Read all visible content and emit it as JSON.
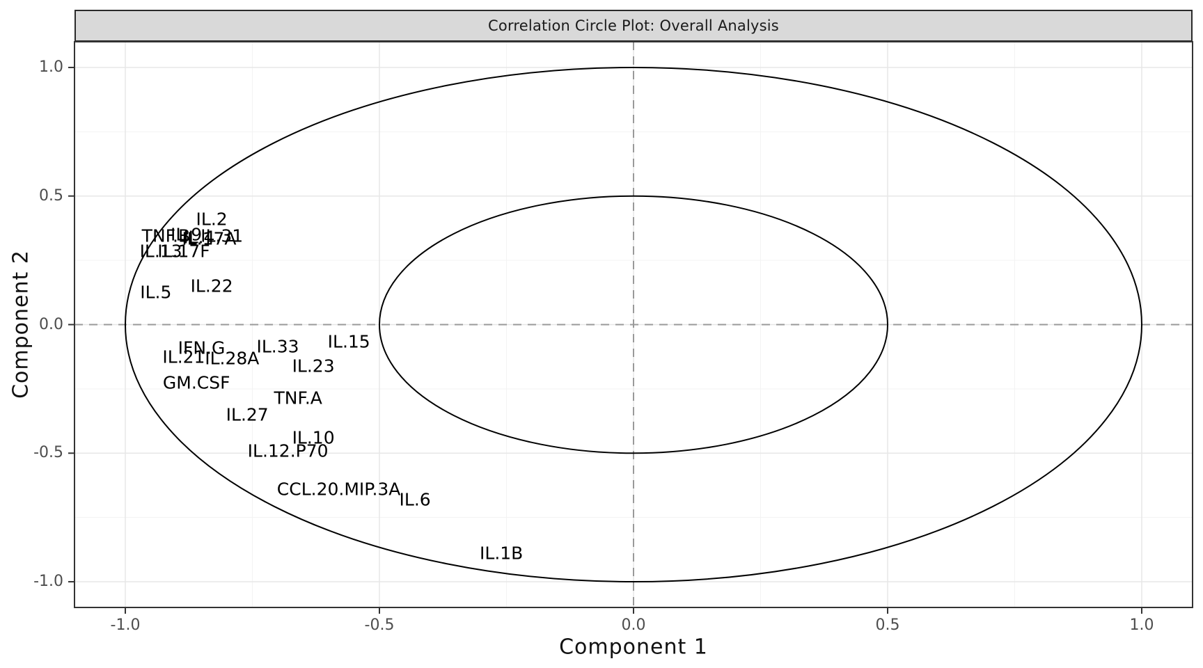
{
  "chart_data": {
    "type": "scatter",
    "title": "Correlation Circle Plot: Overall Analysis",
    "xlabel": "Component 1",
    "ylabel": "Component 2",
    "xlim": [
      -1.1,
      1.1
    ],
    "ylim": [
      -1.1,
      1.1
    ],
    "x_ticks": [
      {
        "value": -1.0,
        "label": "-1.0"
      },
      {
        "value": -0.5,
        "label": "-0.5"
      },
      {
        "value": 0.0,
        "label": "0.0"
      },
      {
        "value": 0.5,
        "label": "0.5"
      },
      {
        "value": 1.0,
        "label": "1.0"
      }
    ],
    "y_ticks": [
      {
        "value": 1.0,
        "label": "1.0"
      },
      {
        "value": 0.5,
        "label": "0.5"
      },
      {
        "value": 0.0,
        "label": "0.0"
      },
      {
        "value": -0.5,
        "label": "-0.5"
      },
      {
        "value": -1.0,
        "label": "-1.0"
      }
    ],
    "minor_grid": [
      -0.75,
      -0.25,
      0.25,
      0.75
    ],
    "grid": true,
    "legend": "none",
    "correlation_circles": [
      0.5,
      1.0
    ],
    "reference_lines": {
      "vertical_x": 0,
      "horizontal_y": 0,
      "style": "dashed"
    },
    "points": [
      {
        "label": "IL.2",
        "x": -0.83,
        "y": 0.41
      },
      {
        "label": "TNF.B",
        "x": -0.92,
        "y": 0.345
      },
      {
        "label": "IL.9",
        "x": -0.88,
        "y": 0.35
      },
      {
        "label": "IL.4",
        "x": -0.855,
        "y": 0.34
      },
      {
        "label": "IL.17A",
        "x": -0.835,
        "y": 0.335
      },
      {
        "label": "IL.31",
        "x": -0.81,
        "y": 0.345
      },
      {
        "label": "IL.13",
        "x": -0.93,
        "y": 0.285
      },
      {
        "label": "IL.17F",
        "x": -0.885,
        "y": 0.285
      },
      {
        "label": "IL.5",
        "x": -0.94,
        "y": 0.125
      },
      {
        "label": "IL.22",
        "x": -0.83,
        "y": 0.15
      },
      {
        "label": "IFN.G",
        "x": -0.85,
        "y": -0.09
      },
      {
        "label": "IL.21",
        "x": -0.885,
        "y": -0.125
      },
      {
        "label": "IL.28A",
        "x": -0.79,
        "y": -0.13
      },
      {
        "label": "IL.33",
        "x": -0.7,
        "y": -0.085
      },
      {
        "label": "IL.15",
        "x": -0.56,
        "y": -0.065
      },
      {
        "label": "IL.23",
        "x": -0.63,
        "y": -0.16
      },
      {
        "label": "GM.CSF",
        "x": -0.86,
        "y": -0.225
      },
      {
        "label": "TNF.A",
        "x": -0.66,
        "y": -0.285
      },
      {
        "label": "IL.27",
        "x": -0.76,
        "y": -0.35
      },
      {
        "label": "IL.10",
        "x": -0.63,
        "y": -0.44
      },
      {
        "label": "IL.12.P70",
        "x": -0.68,
        "y": -0.49
      },
      {
        "label": "CCL.20.MIP.3A",
        "x": -0.58,
        "y": -0.64
      },
      {
        "label": "IL.6",
        "x": -0.43,
        "y": -0.68
      },
      {
        "label": "IL.1B",
        "x": -0.26,
        "y": -0.89
      }
    ]
  },
  "colors": {
    "strip_background": "#d9d9d9",
    "panel_border": "#333333",
    "major_gridline": "#e7e7e7",
    "minor_gridline": "#f3f3f3",
    "dashed_reference": "#999999",
    "circle_stroke": "#000000",
    "label_text": "#000000",
    "tick_text": "#4d4d4d"
  }
}
